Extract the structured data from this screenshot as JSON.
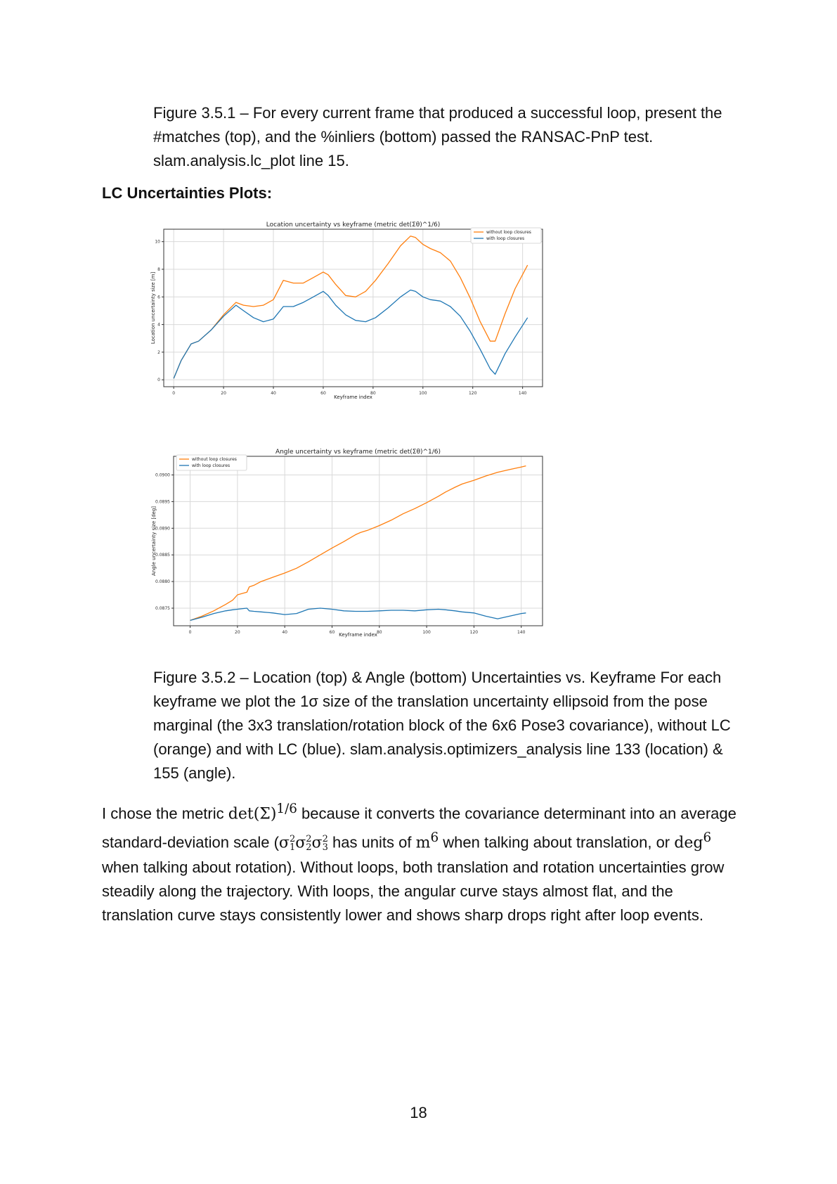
{
  "caption1": {
    "text": "Figure 3.5.1 – For every current frame that produced a successful loop, present the #matches (top), and the %inliers (bottom) passed the RANSAC-PnP test. slam.analysis.lc_plot line 15."
  },
  "section_heading": "LC Uncertainties Plots:",
  "caption2": {
    "text": "Figure 3.5.2 – Location (top) & Angle (bottom) Uncertainties vs. Keyframe For each keyframe we plot the 1σ size of the translation uncertainty ellipsoid from the pose marginal (the 3x3 translation/rotation block of the 6x6 Pose3 covariance), without LC (orange) and with LC (blue). slam.analysis.optimizers_analysis line 133 (location) & 155 (angle)."
  },
  "paragraph": {
    "p1": "I chose the metric ",
    "m1": "det(Σ)",
    "m1_sup": "1/6",
    "p2": " because it converts the covariance determinant into an average standard-deviation scale (",
    "s1": "σ",
    "s1_sub": "1",
    "s1_sup": "2",
    "s2": "σ",
    "s2_sub": "2",
    "s2_sup": "2",
    "s3": "σ",
    "s3_sub": "3",
    "s3_sup": "2",
    "p3": " has units of ",
    "m2": "m",
    "m2_sup": "6",
    "p4": " when talking about translation, or ",
    "m3": "deg",
    "m3_sup": "6",
    "p5": " when talking about rotation). Without loops, both translation and rotation uncertainties grow steadily along the trajectory. With loops, the angular curve stays almost flat, and the translation curve stays consistently lower and shows sharp drops right after loop events."
  },
  "page_number": "18",
  "colors": {
    "orange": "#ff7f0e",
    "blue": "#1f77b4",
    "grid": "#d9d9d9",
    "axis": "#333333"
  },
  "chart_data": [
    {
      "type": "line",
      "title": "Location uncertainty vs keyframe (metric det(Σθ)^1/6)",
      "xlabel": "Keyframe index",
      "ylabel": "Location uncertainty size  [m]",
      "xlim": [
        -4,
        148
      ],
      "ylim": [
        -0.5,
        10.9
      ],
      "xticks": [
        0,
        20,
        40,
        60,
        80,
        100,
        120,
        140
      ],
      "yticks": [
        0,
        2,
        4,
        6,
        8,
        10
      ],
      "yticklabels": [
        "0",
        "2",
        "4",
        "6",
        "8",
        "10"
      ],
      "grid": true,
      "legend": "top-right",
      "x": [
        0,
        3,
        7,
        10,
        15,
        20,
        25,
        28,
        32,
        36,
        40,
        44,
        48,
        52,
        56,
        60,
        62,
        65,
        69,
        73,
        77,
        81,
        86,
        91,
        95,
        97,
        100,
        103,
        107,
        111,
        115,
        119,
        123,
        127,
        129,
        133,
        137,
        142
      ],
      "series": [
        {
          "name": "without loop closures",
          "color": "#ff7f0e",
          "values": [
            0.1,
            1.4,
            2.6,
            2.8,
            3.6,
            4.7,
            5.6,
            5.4,
            5.3,
            5.4,
            5.8,
            7.2,
            7.0,
            7.0,
            7.4,
            7.8,
            7.6,
            6.9,
            6.1,
            6.0,
            6.4,
            7.2,
            8.4,
            9.7,
            10.4,
            10.3,
            9.8,
            9.5,
            9.2,
            8.6,
            7.4,
            5.9,
            4.2,
            2.8,
            2.8,
            4.8,
            6.6,
            8.3
          ]
        },
        {
          "name": "with loop closures",
          "color": "#1f77b4",
          "values": [
            0.1,
            1.4,
            2.6,
            2.8,
            3.6,
            4.6,
            5.4,
            5.0,
            4.5,
            4.2,
            4.4,
            5.3,
            5.3,
            5.6,
            6.0,
            6.4,
            6.1,
            5.4,
            4.7,
            4.3,
            4.2,
            4.5,
            5.2,
            6.0,
            6.5,
            6.4,
            6.0,
            5.8,
            5.7,
            5.3,
            4.6,
            3.5,
            2.2,
            0.8,
            0.4,
            1.9,
            3.1,
            4.5
          ]
        }
      ]
    },
    {
      "type": "line",
      "title": "Angle uncertainty vs keyframe (metric det(Σθ)^1/6)",
      "xlabel": "Keyframe index",
      "ylabel": "Angle uncertainty size  [deg]",
      "xlim": [
        -7,
        149
      ],
      "ylim": [
        0.08717,
        0.09035
      ],
      "xticks": [
        0,
        20,
        40,
        60,
        80,
        100,
        120,
        140
      ],
      "yticks": [
        0.0875,
        0.088,
        0.0885,
        0.089,
        0.0895,
        0.09
      ],
      "yticklabels": [
        "0.0875",
        "0.0880",
        "0.0885",
        "0.0890",
        "0.0895",
        "0.0900"
      ],
      "grid": true,
      "legend": "top-left",
      "x": [
        0,
        5,
        10,
        15,
        18,
        20,
        24,
        25,
        27,
        30,
        35,
        40,
        45,
        50,
        55,
        60,
        65,
        70,
        72,
        75,
        80,
        85,
        90,
        95,
        100,
        105,
        108,
        112,
        115,
        120,
        125,
        130,
        135,
        140,
        142
      ],
      "series": [
        {
          "name": "without loop closures",
          "color": "#ff7f0e",
          "values": [
            0.08727,
            0.08735,
            0.08745,
            0.08757,
            0.08765,
            0.08775,
            0.0878,
            0.0879,
            0.08793,
            0.088,
            0.08808,
            0.08816,
            0.08825,
            0.08837,
            0.0885,
            0.08863,
            0.08875,
            0.08888,
            0.08892,
            0.08896,
            0.08905,
            0.08915,
            0.08927,
            0.08937,
            0.08948,
            0.0896,
            0.08968,
            0.08977,
            0.08983,
            0.0899,
            0.08998,
            0.09005,
            0.0901,
            0.09015,
            0.09017
          ]
        },
        {
          "name": "with loop closures",
          "color": "#1f77b4",
          "values": [
            0.08727,
            0.08733,
            0.0874,
            0.08745,
            0.08747,
            0.08748,
            0.0875,
            0.08745,
            0.08744,
            0.08743,
            0.08741,
            0.08738,
            0.0874,
            0.08748,
            0.0875,
            0.08748,
            0.08745,
            0.08744,
            0.08744,
            0.08744,
            0.08745,
            0.08746,
            0.08746,
            0.08745,
            0.08747,
            0.08748,
            0.08747,
            0.08745,
            0.08743,
            0.08741,
            0.08735,
            0.0873,
            0.08735,
            0.0874,
            0.08741
          ]
        }
      ]
    }
  ]
}
